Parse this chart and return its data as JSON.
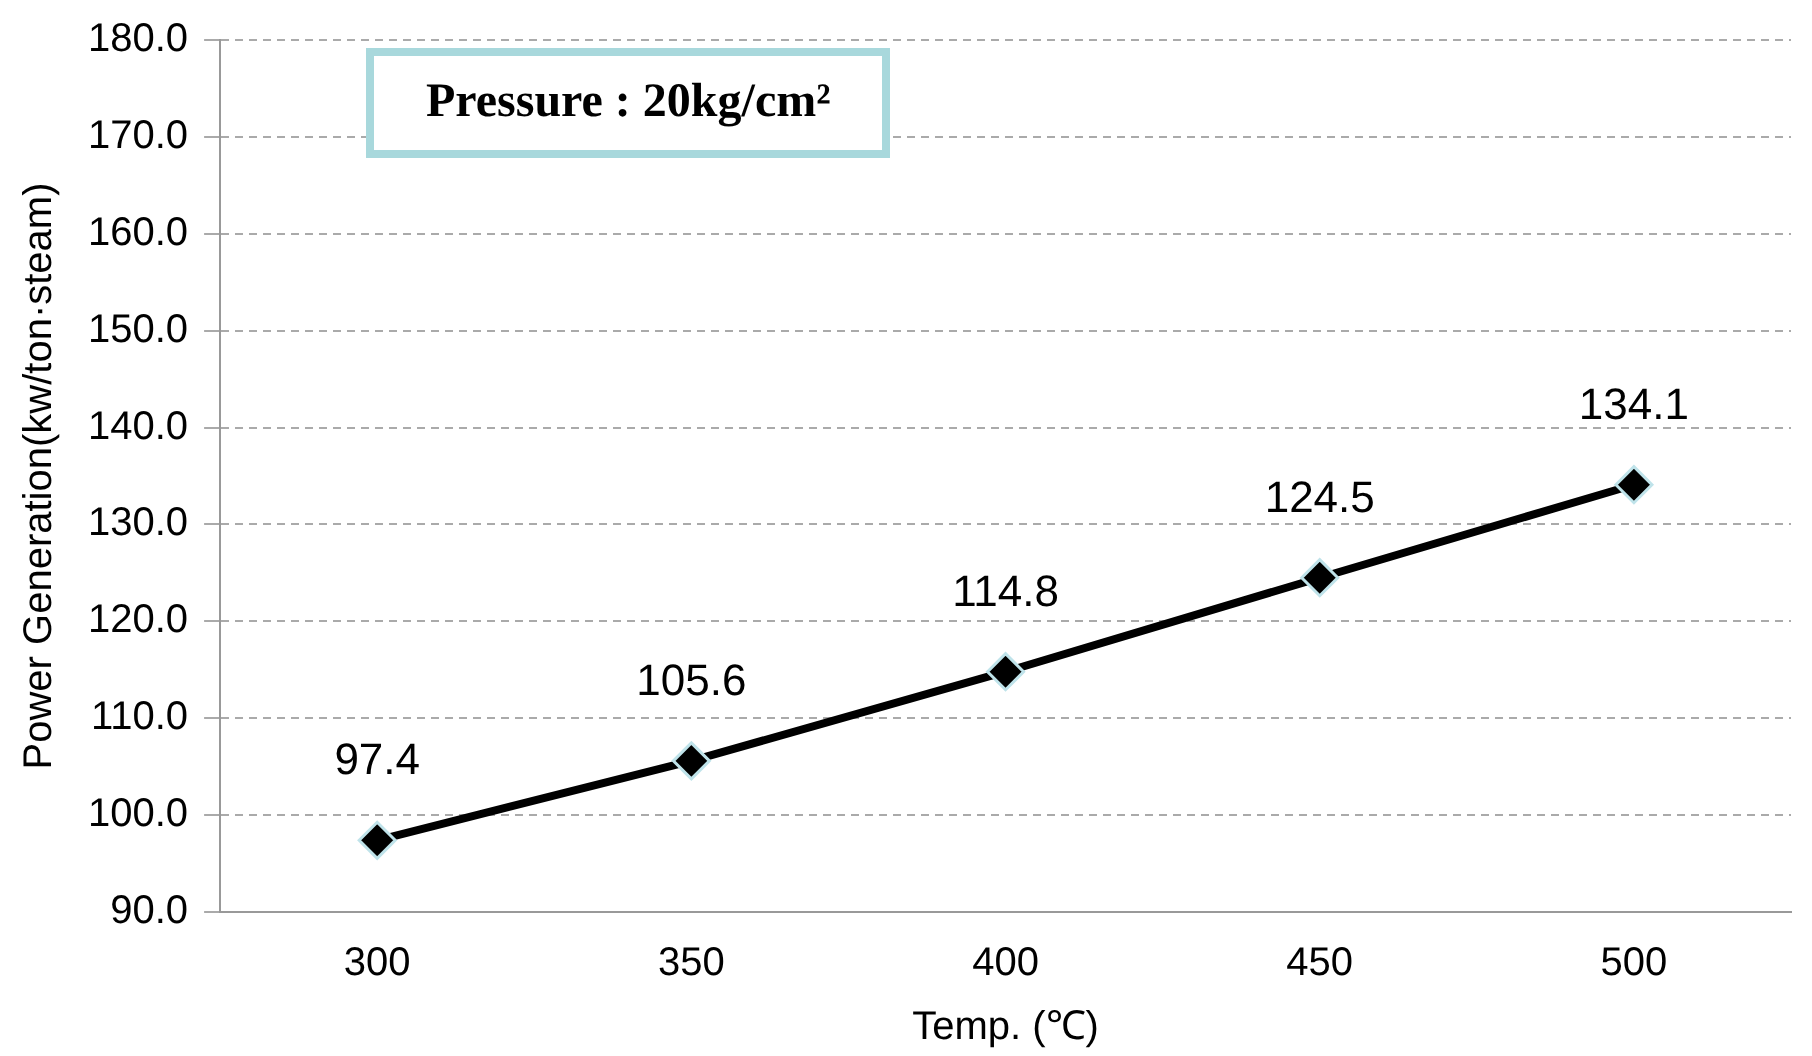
{
  "chart_data": {
    "type": "line",
    "xlabel": "Temp. (℃)",
    "ylabel": "Power Generation(kw/ton·steam)",
    "categories": [
      "300",
      "350",
      "400",
      "450",
      "500"
    ],
    "series": [
      {
        "color": "#000000",
        "values": [
          97.4,
          105.6,
          114.8,
          124.5,
          134.1
        ]
      }
    ],
    "ylim": [
      90,
      180
    ],
    "yticks": [
      {
        "value": 90,
        "label": "90.0"
      },
      {
        "value": 100,
        "label": "100.0"
      },
      {
        "value": 110,
        "label": "110.0"
      },
      {
        "value": 120,
        "label": "120.0"
      },
      {
        "value": 130,
        "label": "130.0"
      },
      {
        "value": 140,
        "label": "140.0"
      },
      {
        "value": 150,
        "label": "150.0"
      },
      {
        "value": 160,
        "label": "160.0"
      },
      {
        "value": 170,
        "label": "170.0"
      },
      {
        "value": 180,
        "label": "180.0"
      }
    ],
    "grid": "y",
    "legend": false,
    "marker": "diamond",
    "line_style": "solid",
    "data_labels": true,
    "annotations": [
      "Pressure : 20kg/cm²"
    ]
  }
}
